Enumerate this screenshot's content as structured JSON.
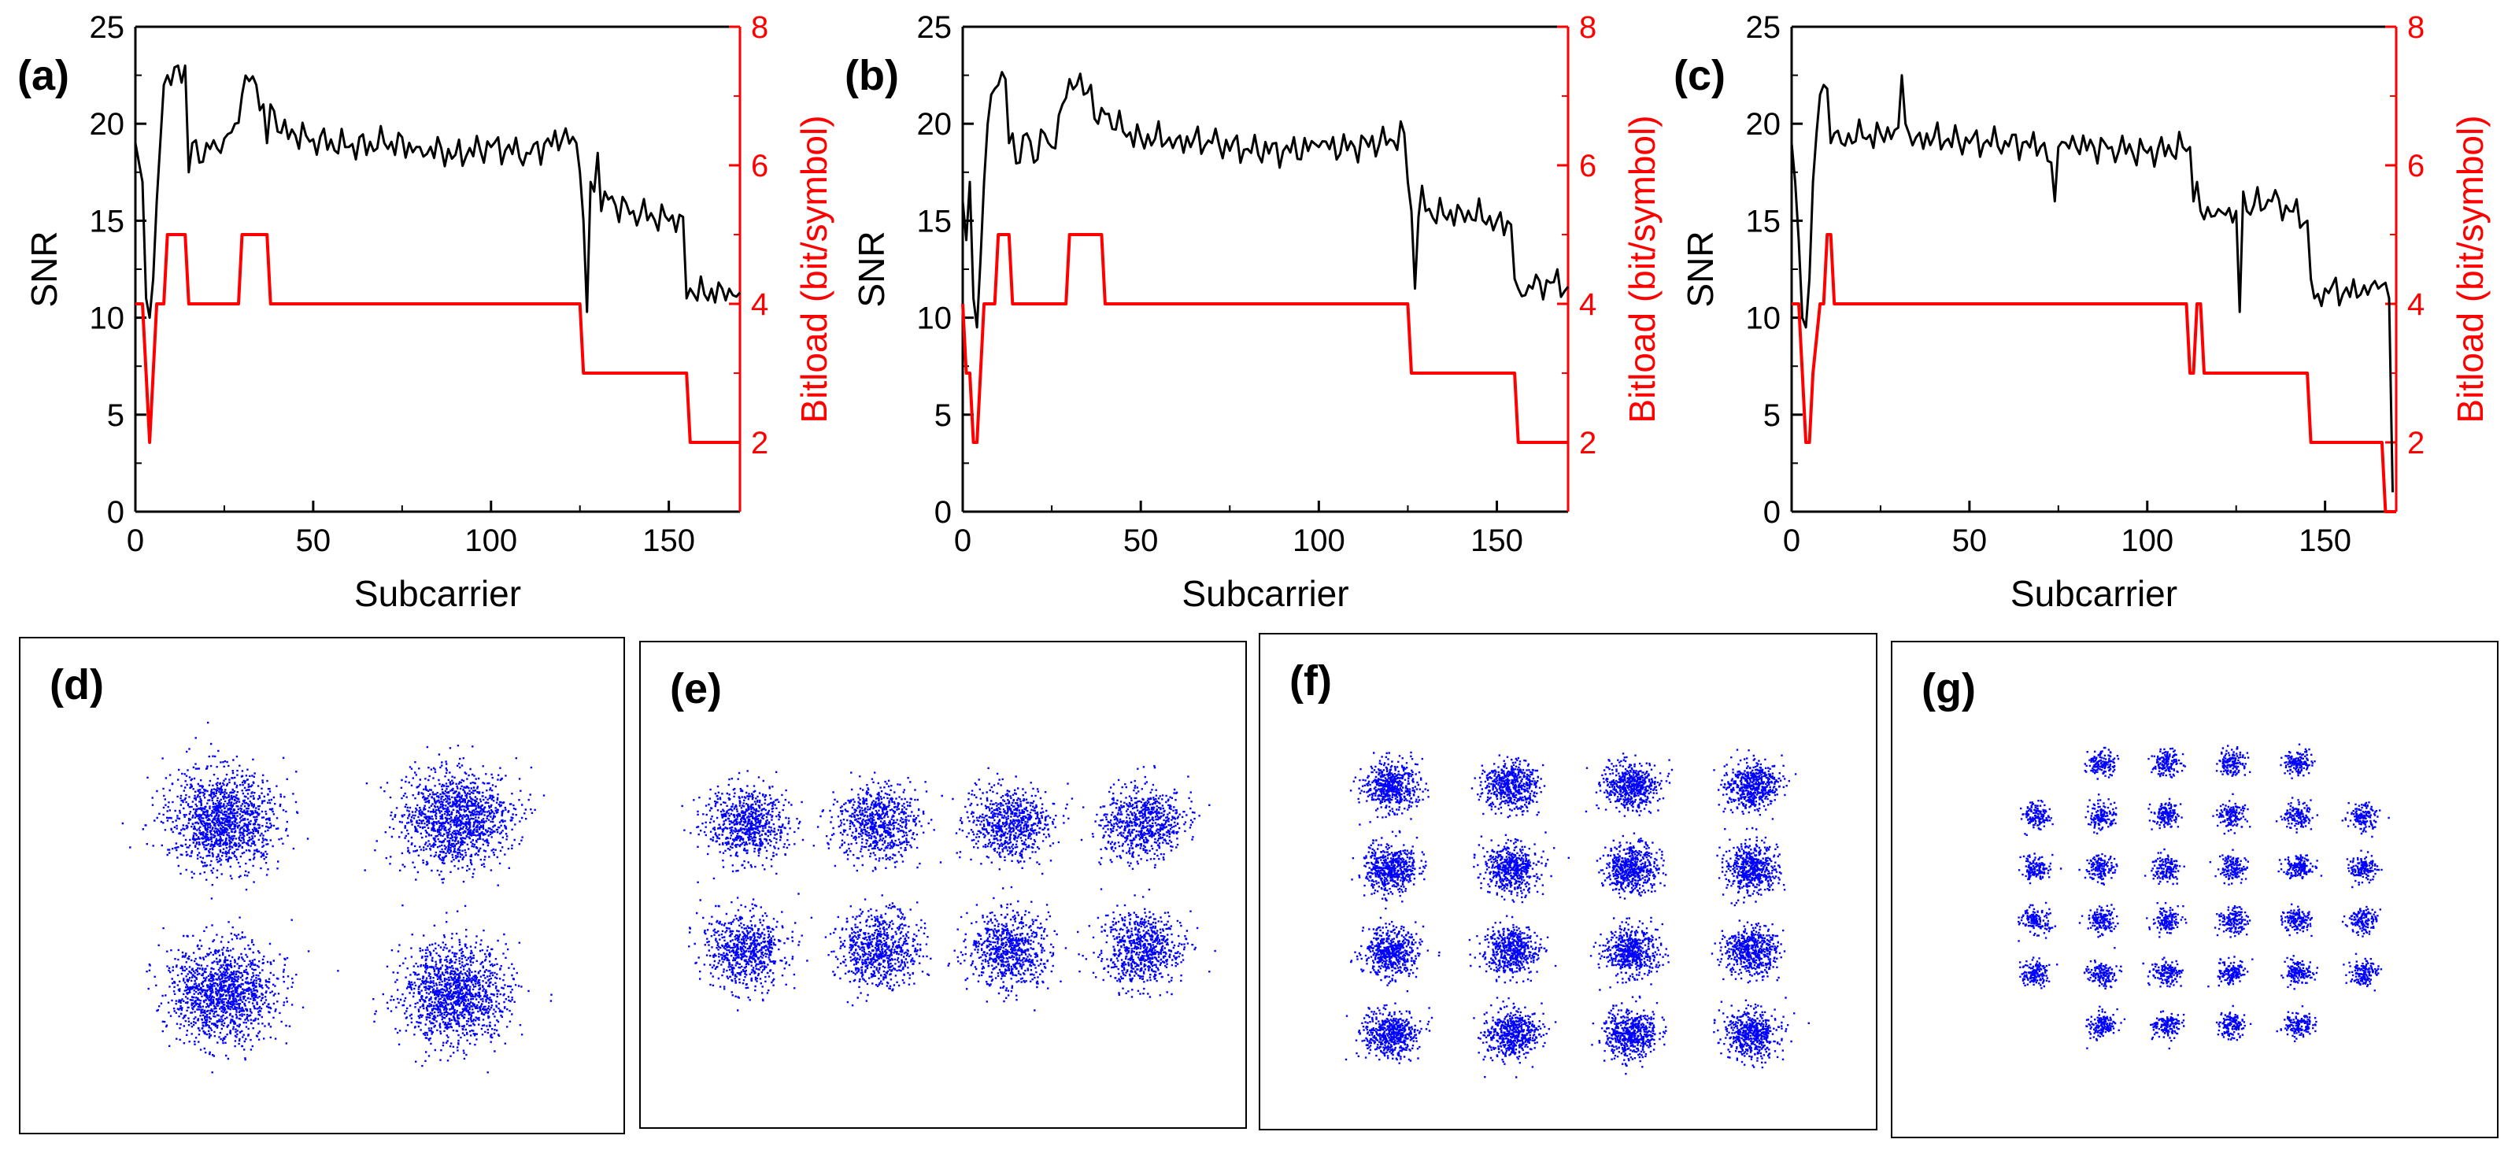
{
  "chart_data": [
    {
      "panel": "(a)",
      "type": "line",
      "xlabel": "Subcarrier",
      "ylabel": "SNR",
      "y2label": "Bitload (bit/symbol)",
      "xlim": [
        0,
        170
      ],
      "ylim": [
        0,
        25
      ],
      "y2lim": [
        1,
        8
      ],
      "xticks": [
        0,
        50,
        100,
        150
      ],
      "yticks": [
        0,
        5,
        10,
        15,
        20,
        25
      ],
      "y2ticks": [
        2,
        4,
        6,
        8
      ],
      "series": [
        {
          "name": "SNR",
          "axis": "left",
          "color": "#000000",
          "x": [
            0,
            1,
            2,
            3,
            4,
            5,
            6,
            7,
            8,
            9,
            10,
            12,
            14,
            15,
            16,
            18,
            20,
            24,
            28,
            30,
            32,
            34,
            36,
            37,
            38,
            40,
            45,
            50,
            60,
            70,
            80,
            90,
            100,
            110,
            120,
            124,
            125,
            126,
            127,
            128,
            129,
            130,
            131,
            132,
            135,
            140,
            150,
            154,
            155,
            156,
            160,
            165,
            170
          ],
          "y": [
            19,
            18,
            17,
            11,
            10,
            12,
            16,
            19,
            22,
            22.5,
            22,
            23,
            23,
            17.5,
            19,
            18,
            19,
            18.5,
            20,
            21.5,
            22.2,
            22,
            21,
            19,
            21,
            19.6,
            19.4,
            19.2,
            18.8,
            19,
            18.8,
            18.4,
            18.8,
            18.5,
            19.2,
            19,
            17.5,
            15,
            10.3,
            17,
            16.5,
            18.5,
            15.5,
            16.5,
            15.8,
            15.5,
            15,
            15.2,
            11,
            11.5,
            11.2,
            11.5,
            11.3
          ]
        },
        {
          "name": "Bitload",
          "axis": "right",
          "color": "#ff0000",
          "x": [
            0,
            2,
            3,
            4,
            5,
            6,
            7,
            8,
            9,
            10,
            14,
            15,
            29,
            30,
            37,
            38,
            125,
            126,
            155,
            156,
            170
          ],
          "y": [
            4,
            4,
            3,
            2,
            3,
            4,
            4,
            4,
            5,
            5,
            5,
            4,
            4,
            5,
            5,
            4,
            4,
            3,
            3,
            2,
            2
          ]
        }
      ]
    },
    {
      "panel": "(b)",
      "type": "line",
      "xlabel": "Subcarrier",
      "ylabel": "SNR",
      "y2label": "Bitload (bit/symbol)",
      "xlim": [
        0,
        170
      ],
      "ylim": [
        0,
        25
      ],
      "y2lim": [
        1,
        8
      ],
      "xticks": [
        0,
        50,
        100,
        150
      ],
      "yticks": [
        0,
        5,
        10,
        15,
        20,
        25
      ],
      "y2ticks": [
        2,
        4,
        6,
        8
      ],
      "series": [
        {
          "name": "SNR",
          "axis": "left",
          "color": "#000000",
          "x": [
            0,
            1,
            2,
            3,
            4,
            5,
            6,
            7,
            8,
            9,
            10,
            12,
            13,
            14,
            16,
            18,
            20,
            22,
            25,
            28,
            30,
            32,
            34,
            36,
            38,
            40,
            45,
            50,
            60,
            70,
            80,
            90,
            100,
            110,
            120,
            124,
            125,
            126,
            127,
            128,
            129,
            130,
            135,
            140,
            150,
            154,
            155,
            156,
            160,
            165,
            170
          ],
          "y": [
            16,
            14,
            17,
            11,
            9.5,
            13,
            17,
            20,
            21.5,
            21.8,
            22,
            22.3,
            19,
            19.5,
            18,
            19.5,
            18,
            19.7,
            18.8,
            21,
            22.3,
            22,
            21.5,
            22,
            20,
            20.5,
            19.6,
            19.3,
            19.2,
            19,
            18.7,
            18.6,
            18.8,
            18.8,
            19.2,
            19.5,
            17,
            15.5,
            11.5,
            15.2,
            16.8,
            15.5,
            15.3,
            15.5,
            15,
            14.8,
            12,
            11.5,
            11.5,
            11.8,
            11.6
          ]
        },
        {
          "name": "Bitload",
          "axis": "right",
          "color": "#ff0000",
          "x": [
            0,
            1,
            2,
            3,
            4,
            5,
            6,
            7,
            9,
            10,
            13,
            14,
            29,
            30,
            39,
            40,
            125,
            126,
            155,
            156,
            170
          ],
          "y": [
            4,
            3,
            3,
            2,
            2,
            3,
            4,
            4,
            4,
            5,
            5,
            4,
            4,
            5,
            5,
            4,
            4,
            3,
            3,
            2,
            2
          ]
        }
      ]
    },
    {
      "panel": "(c)",
      "type": "line",
      "xlabel": "Subcarrier",
      "ylabel": "SNR",
      "y2label": "Bitload (bit/symbol)",
      "xlim": [
        0,
        170
      ],
      "ylim": [
        0,
        25
      ],
      "y2lim": [
        1,
        8
      ],
      "xticks": [
        0,
        50,
        100,
        150
      ],
      "yticks": [
        0,
        5,
        10,
        15,
        20,
        25
      ],
      "y2ticks": [
        2,
        4,
        6,
        8
      ],
      "series": [
        {
          "name": "SNR",
          "axis": "left",
          "color": "#000000",
          "x": [
            0,
            1,
            2,
            3,
            4,
            5,
            6,
            7,
            8,
            9,
            10,
            11,
            12,
            14,
            16,
            20,
            25,
            30,
            31,
            32,
            33,
            35,
            40,
            50,
            60,
            70,
            73,
            74,
            75,
            80,
            90,
            100,
            110,
            112,
            113,
            114,
            115,
            120,
            125,
            126,
            127,
            128,
            130,
            135,
            140,
            145,
            146,
            147,
            150,
            160,
            165,
            167,
            168,
            169
          ],
          "y": [
            19,
            17,
            14,
            10,
            9.5,
            12,
            17,
            19.5,
            21.5,
            22,
            21.8,
            19,
            19.5,
            19,
            19.5,
            19.3,
            19.5,
            19.8,
            22.5,
            20,
            19.5,
            19.3,
            19.3,
            19,
            19.1,
            18.8,
            18,
            16,
            18.8,
            18.8,
            18.8,
            18.5,
            18.8,
            18.8,
            16,
            17,
            15.5,
            15.6,
            15.5,
            10.3,
            16.5,
            15.5,
            15.8,
            16,
            15.5,
            15,
            12,
            11,
            11.5,
            11.2,
            11.5,
            11.8,
            11,
            1
          ]
        },
        {
          "name": "Bitload",
          "axis": "right",
          "color": "#ff0000",
          "x": [
            0,
            2,
            3,
            4,
            5,
            6,
            8,
            9,
            10,
            11,
            12,
            111,
            112,
            113,
            114,
            115,
            116,
            145,
            146,
            166,
            167,
            168,
            170
          ],
          "y": [
            4,
            4,
            3,
            2,
            2,
            3,
            4,
            4,
            5,
            5,
            4,
            4,
            3,
            3,
            4,
            4,
            3,
            3,
            2,
            2,
            1,
            1,
            1
          ]
        }
      ]
    },
    {
      "panel": "(d)",
      "type": "scatter",
      "description_label": "constellation",
      "grid": [
        2,
        2
      ]
    },
    {
      "panel": "(e)",
      "type": "scatter",
      "description_label": "constellation",
      "grid": [
        4,
        2
      ]
    },
    {
      "panel": "(f)",
      "type": "scatter",
      "description_label": "constellation",
      "grid": [
        4,
        4
      ]
    },
    {
      "panel": "(g)",
      "type": "scatter",
      "description_label": "constellation",
      "grid": [
        6,
        6
      ],
      "cross_shape": true
    }
  ],
  "colors": {
    "snr": "#000000",
    "bitload": "#ff0000",
    "constellation": "#0000ff"
  }
}
